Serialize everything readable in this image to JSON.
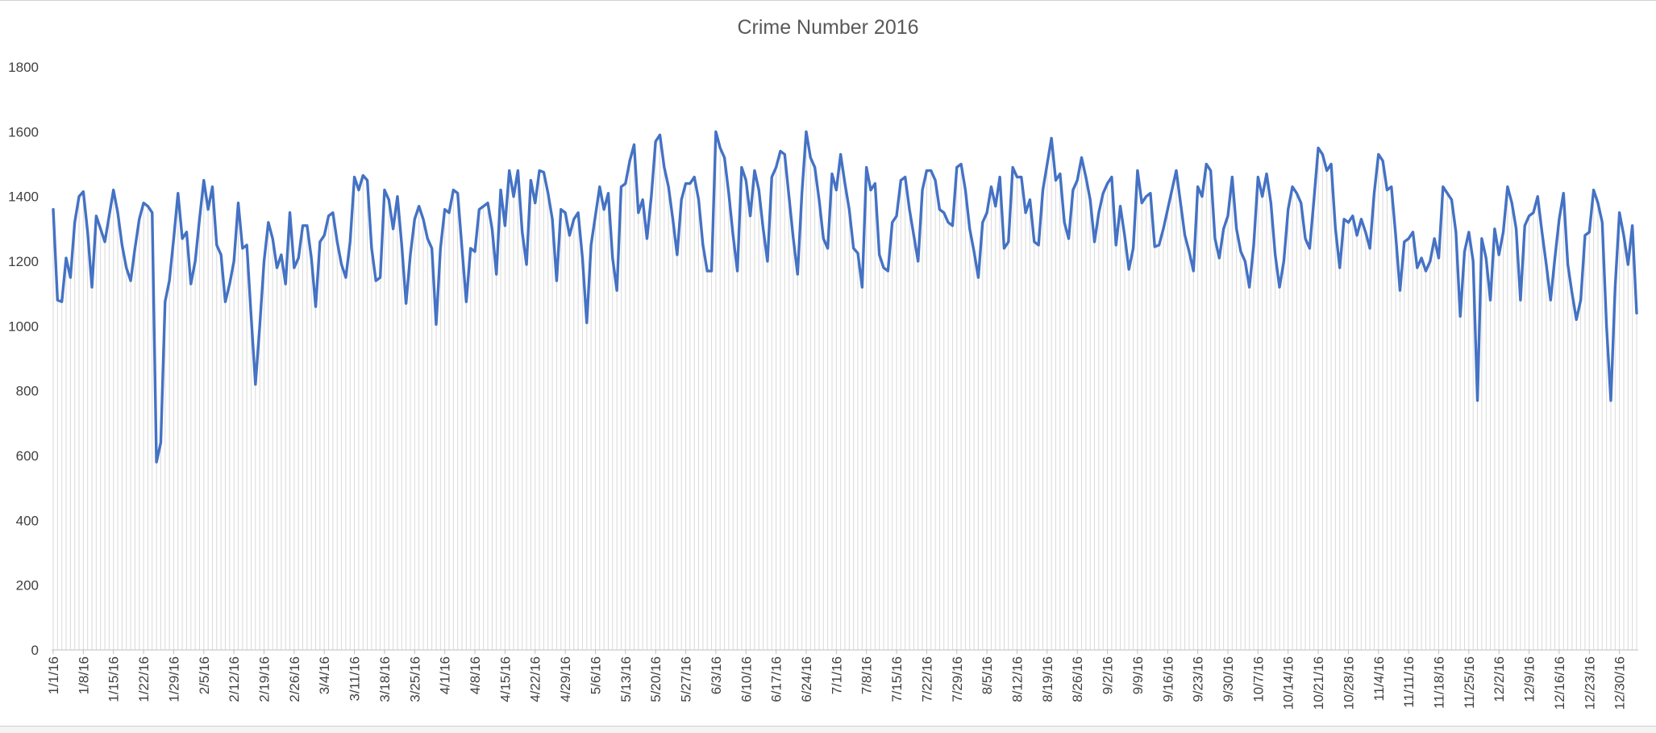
{
  "chart_data": {
    "type": "line",
    "title": "Crime Number 2016",
    "xlabel": "",
    "ylabel": "",
    "ylim": [
      0,
      1800
    ],
    "yticks": [
      0,
      200,
      400,
      600,
      800,
      1000,
      1200,
      1400,
      1600,
      1800
    ],
    "x_start": "1/1/16",
    "x_end": "12/30/16",
    "xtick_labels": [
      "1/1/16",
      "1/8/16",
      "1/15/16",
      "1/22/16",
      "1/29/16",
      "2/5/16",
      "2/12/16",
      "2/19/16",
      "2/26/16",
      "3/4/16",
      "3/11/16",
      "3/18/16",
      "3/25/16",
      "4/1/16",
      "4/8/16",
      "4/15/16",
      "4/22/16",
      "4/29/16",
      "5/6/16",
      "5/13/16",
      "5/20/16",
      "5/27/16",
      "6/3/16",
      "6/10/16",
      "6/17/16",
      "6/24/16",
      "7/1/16",
      "7/8/16",
      "7/15/16",
      "7/22/16",
      "7/29/16",
      "8/5/16",
      "8/12/16",
      "8/19/16",
      "8/26/16",
      "9/2/16",
      "9/9/16",
      "9/16/16",
      "9/23/16",
      "9/30/16",
      "10/7/16",
      "10/14/16",
      "10/21/16",
      "10/28/16",
      "11/4/16",
      "11/11/16",
      "11/18/16",
      "11/25/16",
      "12/2/16",
      "12/9/16",
      "12/16/16",
      "12/23/16",
      "12/30/16"
    ],
    "grid": "vertical day gridlines",
    "line_color": "#4472C4",
    "gridline_color": "#d9d9d9",
    "series": [
      {
        "values": [
          1360,
          1080,
          1075,
          1210,
          1150,
          1320,
          1400,
          1415,
          1290,
          1120,
          1340,
          1300,
          1260,
          1340,
          1420,
          1350,
          1250,
          1180,
          1140,
          1240,
          1330,
          1380,
          1370,
          1350,
          580,
          640,
          1075,
          1140,
          1270,
          1410,
          1270,
          1290,
          1130,
          1200,
          1330,
          1450,
          1360,
          1430,
          1250,
          1220,
          1075,
          1130,
          1200,
          1380,
          1240,
          1250,
          1030,
          820,
          1000,
          1200,
          1320,
          1270,
          1180,
          1220,
          1130,
          1350,
          1180,
          1210,
          1310,
          1310,
          1210,
          1060,
          1260,
          1280,
          1340,
          1350,
          1260,
          1190,
          1150,
          1260,
          1460,
          1420,
          1465,
          1450,
          1240,
          1140,
          1150,
          1420,
          1390,
          1300,
          1400,
          1250,
          1070,
          1220,
          1330,
          1370,
          1330,
          1270,
          1240,
          1005,
          1240,
          1360,
          1350,
          1420,
          1410,
          1240,
          1075,
          1240,
          1230,
          1360,
          1370,
          1380,
          1300,
          1160,
          1420,
          1310,
          1480,
          1400,
          1480,
          1290,
          1190,
          1450,
          1380,
          1480,
          1475,
          1410,
          1330,
          1140,
          1360,
          1350,
          1280,
          1330,
          1350,
          1210,
          1010,
          1250,
          1340,
          1430,
          1360,
          1410,
          1210,
          1110,
          1430,
          1440,
          1510,
          1560,
          1350,
          1390,
          1270,
          1400,
          1570,
          1590,
          1490,
          1430,
          1330,
          1220,
          1390,
          1440,
          1440,
          1460,
          1390,
          1250,
          1170,
          1170,
          1600,
          1550,
          1520,
          1410,
          1280,
          1170,
          1490,
          1450,
          1340,
          1480,
          1420,
          1300,
          1200,
          1460,
          1490,
          1540,
          1530,
          1400,
          1270,
          1160,
          1410,
          1600,
          1520,
          1490,
          1390,
          1270,
          1240,
          1470,
          1420,
          1530,
          1440,
          1360,
          1240,
          1225,
          1120,
          1490,
          1420,
          1440,
          1220,
          1180,
          1170,
          1320,
          1340,
          1450,
          1460,
          1360,
          1280,
          1200,
          1420,
          1480,
          1480,
          1450,
          1360,
          1350,
          1320,
          1310,
          1490,
          1500,
          1420,
          1300,
          1230,
          1150,
          1320,
          1350,
          1430,
          1370,
          1460,
          1240,
          1260,
          1490,
          1460,
          1460,
          1350,
          1390,
          1260,
          1250,
          1420,
          1500,
          1580,
          1450,
          1470,
          1320,
          1270,
          1420,
          1450,
          1520,
          1460,
          1390,
          1260,
          1350,
          1410,
          1440,
          1460,
          1250,
          1370,
          1280,
          1175,
          1240,
          1480,
          1380,
          1400,
          1410,
          1245,
          1250,
          1300,
          1360,
          1420,
          1480,
          1380,
          1280,
          1230,
          1170,
          1430,
          1400,
          1500,
          1480,
          1270,
          1210,
          1300,
          1340,
          1460,
          1300,
          1230,
          1200,
          1120,
          1250,
          1460,
          1400,
          1470,
          1380,
          1220,
          1120,
          1200,
          1360,
          1430,
          1410,
          1380,
          1270,
          1240,
          1390,
          1550,
          1530,
          1480,
          1500,
          1300,
          1180,
          1330,
          1320,
          1340,
          1280,
          1330,
          1290,
          1240,
          1410,
          1530,
          1510,
          1420,
          1430,
          1280,
          1110,
          1260,
          1270,
          1290,
          1180,
          1210,
          1170,
          1200,
          1270,
          1210,
          1430,
          1410,
          1390,
          1290,
          1030,
          1230,
          1290,
          1200,
          770,
          1270,
          1210,
          1080,
          1300,
          1220,
          1290,
          1430,
          1380,
          1300,
          1080,
          1310,
          1340,
          1350,
          1400,
          1290,
          1190,
          1080,
          1210,
          1330,
          1410,
          1190,
          1100,
          1020,
          1080,
          1280,
          1290,
          1420,
          1380,
          1320,
          1000,
          770,
          1120,
          1350,
          1280,
          1190,
          1310,
          1040
        ]
      }
    ]
  }
}
